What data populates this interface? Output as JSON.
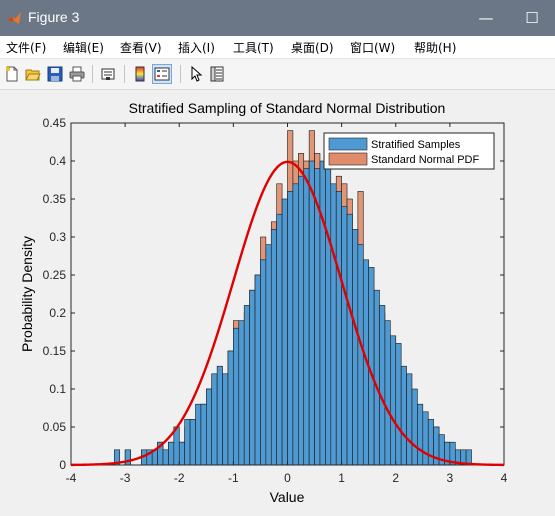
{
  "window": {
    "title": "Figure 3",
    "minimize_glyph": "—",
    "maximize_glyph": "☐",
    "close_glyph": "✕"
  },
  "menu": [
    "文件(F)",
    "编辑(E)",
    "查看(V)",
    "插入(I)",
    "工具(T)",
    "桌面(D)",
    "窗口(W)",
    "帮助(H)"
  ],
  "toolbar": {
    "icons": [
      "new-figure-icon",
      "open-icon",
      "save-icon",
      "print-icon",
      "link-icon",
      "colorbar-icon",
      "legend-icon",
      "pointer-icon",
      "property-editor-icon"
    ]
  },
  "colors": {
    "stratified": "#4f9ad2",
    "pdf_bars": "#e08c6a",
    "pdf_curve": "#e00000",
    "titlebar": "#6b7786"
  },
  "chart_data": {
    "type": "bar",
    "title": "Stratified Sampling of Standard Normal Distribution",
    "xlabel": "Value",
    "ylabel": "Probability Density",
    "xlim": [
      -4,
      4
    ],
    "ylim": [
      0,
      0.45
    ],
    "xticks": [
      "-4",
      "-3",
      "-2",
      "-1",
      "0",
      "1",
      "2",
      "3",
      "4"
    ],
    "yticks": [
      "0",
      "0.05",
      "0.1",
      "0.15",
      "0.2",
      "0.25",
      "0.3",
      "0.35",
      "0.4",
      "0.45"
    ],
    "bin_width": 0.1,
    "legend": {
      "position": "top-right",
      "entries": [
        "Stratified Samples",
        "Standard Normal PDF"
      ]
    },
    "series": [
      {
        "name": "Stratified Samples",
        "bins_start": -3.2,
        "values": [
          0.02,
          0,
          0.02,
          0,
          0,
          0.02,
          0.02,
          0.02,
          0.03,
          0.02,
          0.03,
          0.05,
          0.03,
          0.06,
          0.06,
          0.08,
          0.08,
          0.1,
          0.12,
          0.13,
          0.12,
          0.15,
          0.18,
          0.19,
          0.21,
          0.23,
          0.25,
          0.27,
          0.29,
          0.31,
          0.33,
          0.35,
          0.36,
          0.37,
          0.38,
          0.39,
          0.4,
          0.39,
          0.4,
          0.39,
          0.37,
          0.36,
          0.34,
          0.33,
          0.31,
          0.29,
          0.27,
          0.26,
          0.23,
          0.21,
          0.19,
          0.17,
          0.16,
          0.13,
          0.12,
          0.1,
          0.08,
          0.07,
          0.06,
          0.05,
          0.04,
          0.03,
          0.03,
          0.02,
          0.02,
          0.02
        ]
      },
      {
        "name": "Standard Normal PDF",
        "bins_start": -3.2,
        "values": [
          0.02,
          0,
          0.02,
          0,
          0,
          0.02,
          0.0,
          0.02,
          0.03,
          0.0,
          0.03,
          0.05,
          0.03,
          0.05,
          0.06,
          0.06,
          0.08,
          0.1,
          0.12,
          0.1,
          0.12,
          0.15,
          0.19,
          0.12,
          0.2,
          0.23,
          0.25,
          0.3,
          0.26,
          0.32,
          0.37,
          0.31,
          0.44,
          0.4,
          0.41,
          0.4,
          0.44,
          0.41,
          0.38,
          0.35,
          0.33,
          0.38,
          0.37,
          0.35,
          0.28,
          0.36,
          0.24,
          0.22,
          0.19,
          0.2,
          0.15,
          0.17,
          0.13,
          0.12,
          0.09,
          0.08,
          0.07,
          0.06,
          0.04,
          0.05,
          0.02,
          0.03,
          0.02,
          0.02,
          0.02,
          0.0
        ]
      }
    ],
    "curve": {
      "name": "Standard Normal PDF",
      "function": "normal_pdf",
      "mean": 0,
      "std": 1
    }
  }
}
